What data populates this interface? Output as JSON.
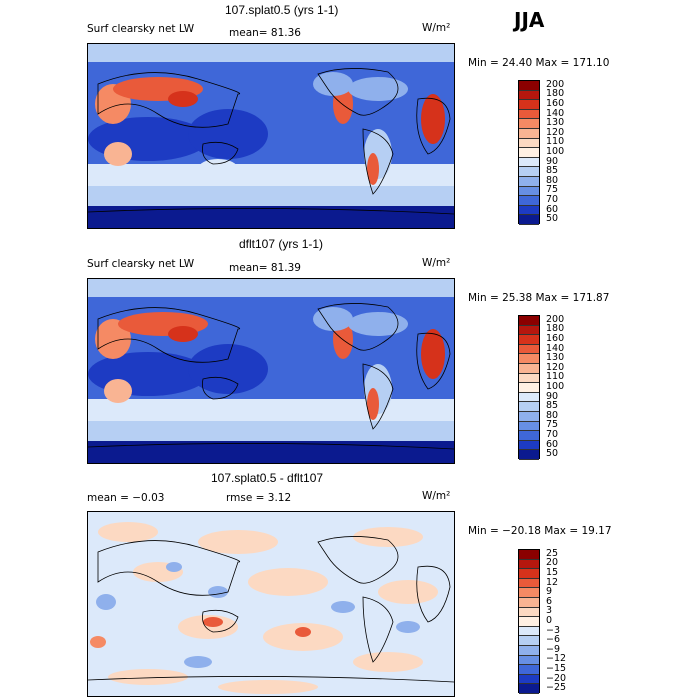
{
  "season": "JJA",
  "panels": [
    {
      "title": "107.splat0.5 (yrs 1-1)",
      "left_label": "Surf clearsky net LW",
      "stat1": "mean=  81.36",
      "stat2": "",
      "units": "W/m²",
      "minmax": "Min =  24.40 Max = 171.10",
      "levels": [
        "200",
        "180",
        "160",
        "140",
        "130",
        "120",
        "110",
        "100",
        "90",
        "85",
        "80",
        "75",
        "70",
        "60",
        "50"
      ],
      "colors": [
        "#8b0000",
        "#b5170e",
        "#d6321b",
        "#e95a3a",
        "#f58a64",
        "#f9b493",
        "#fcd9c2",
        "#fff0e3",
        "#dce9fa",
        "#b6cff3",
        "#8fb0ec",
        "#678fe4",
        "#3f67d8",
        "#1d3bc3",
        "#0b1a8f"
      ]
    },
    {
      "title": "dflt107 (yrs 1-1)",
      "left_label": "Surf clearsky net LW",
      "stat1": "mean=  81.39",
      "stat2": "",
      "units": "W/m²",
      "minmax": "Min =  25.38 Max = 171.87",
      "levels": [
        "200",
        "180",
        "160",
        "140",
        "130",
        "120",
        "110",
        "100",
        "90",
        "85",
        "80",
        "75",
        "70",
        "60",
        "50"
      ],
      "colors": [
        "#8b0000",
        "#b5170e",
        "#d6321b",
        "#e95a3a",
        "#f58a64",
        "#f9b493",
        "#fcd9c2",
        "#fff0e3",
        "#dce9fa",
        "#b6cff3",
        "#8fb0ec",
        "#678fe4",
        "#3f67d8",
        "#1d3bc3",
        "#0b1a8f"
      ]
    },
    {
      "title": "107.splat0.5 - dflt107",
      "left_label": "",
      "stat1": "mean =  −0.03",
      "stat2": "rmse =   3.12",
      "units": "W/m²",
      "minmax": "Min = −20.18 Max =  19.17",
      "levels": [
        "25",
        "20",
        "15",
        "12",
        "9",
        "6",
        "3",
        "0",
        "−3",
        "−6",
        "−9",
        "−12",
        "−15",
        "−20",
        "−25"
      ],
      "colors": [
        "#8b0000",
        "#b5170e",
        "#d6321b",
        "#e95a3a",
        "#f58a64",
        "#f9b493",
        "#fcd9c2",
        "#fff0e3",
        "#dce9fa",
        "#b6cff3",
        "#8fb0ec",
        "#678fe4",
        "#3f67d8",
        "#1d3bc3",
        "#0b1a8f"
      ]
    }
  ]
}
